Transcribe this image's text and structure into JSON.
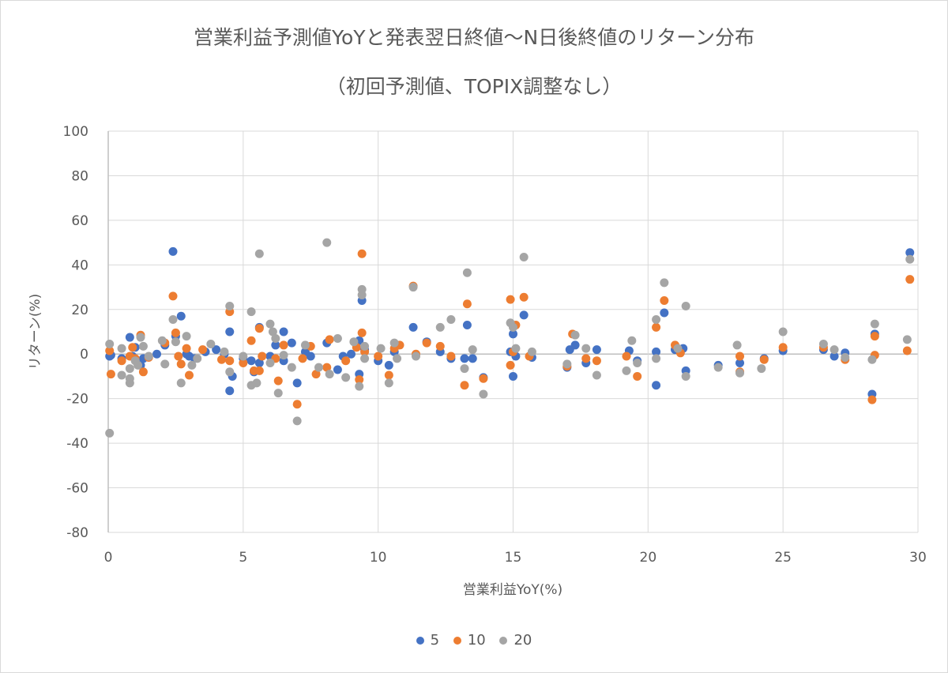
{
  "chart_data": {
    "type": "scatter",
    "title": "営業利益予測値YoYと発表翌日終値～N日後終値のリターン分布",
    "subtitle": "（初回予測値、TOPIX調整なし）",
    "xlabel": "営業利益YoY(%)",
    "ylabel": "リターン(%)",
    "xlim": [
      0,
      30
    ],
    "ylim": [
      -80,
      100
    ],
    "xticks": [
      "0",
      "5",
      "10",
      "15",
      "20",
      "25",
      "30"
    ],
    "yticks": [
      "100",
      "80",
      "60",
      "40",
      "20",
      "0",
      "-20",
      "-40",
      "-60",
      "-80"
    ],
    "grid": true,
    "legend_position": "bottom",
    "series": [
      {
        "name": "5",
        "color": "#4472C4",
        "points": [
          [
            0.05,
            -1
          ],
          [
            0.1,
            -0.5
          ],
          [
            0.5,
            -2
          ],
          [
            0.8,
            7.5
          ],
          [
            0.9,
            -1
          ],
          [
            1.0,
            3
          ],
          [
            1.2,
            -5
          ],
          [
            1.3,
            -2
          ],
          [
            1.8,
            0
          ],
          [
            2.1,
            4
          ],
          [
            2.4,
            46
          ],
          [
            2.5,
            8
          ],
          [
            2.7,
            17
          ],
          [
            2.9,
            0
          ],
          [
            3.0,
            -1
          ],
          [
            3.2,
            -2
          ],
          [
            3.6,
            1
          ],
          [
            4.0,
            2
          ],
          [
            4.3,
            0
          ],
          [
            4.5,
            10
          ],
          [
            4.5,
            -16.5
          ],
          [
            4.6,
            -10
          ],
          [
            5.0,
            -2
          ],
          [
            5.3,
            -3
          ],
          [
            5.4,
            -8
          ],
          [
            5.6,
            12
          ],
          [
            5.6,
            -4
          ],
          [
            6.0,
            -1
          ],
          [
            6.2,
            4
          ],
          [
            6.5,
            10
          ],
          [
            6.5,
            -3
          ],
          [
            6.8,
            5
          ],
          [
            7.0,
            -13
          ],
          [
            7.3,
            1
          ],
          [
            7.5,
            -1
          ],
          [
            8.1,
            5
          ],
          [
            8.5,
            -7
          ],
          [
            8.7,
            -1
          ],
          [
            9.0,
            0
          ],
          [
            9.3,
            6
          ],
          [
            9.3,
            -9
          ],
          [
            9.4,
            24
          ],
          [
            9.5,
            2
          ],
          [
            10.0,
            -3
          ],
          [
            10.4,
            -5
          ],
          [
            10.6,
            1
          ],
          [
            11.3,
            12
          ],
          [
            11.8,
            5.5
          ],
          [
            12.3,
            1
          ],
          [
            12.7,
            -2
          ],
          [
            13.2,
            -2
          ],
          [
            13.3,
            13
          ],
          [
            13.5,
            -2
          ],
          [
            13.9,
            -10.5
          ],
          [
            14.9,
            1
          ],
          [
            15.0,
            9
          ],
          [
            15.0,
            -10
          ],
          [
            15.1,
            -1
          ],
          [
            15.4,
            17.5
          ],
          [
            15.7,
            -1.5
          ],
          [
            17.0,
            -6
          ],
          [
            17.1,
            2
          ],
          [
            17.3,
            4
          ],
          [
            17.7,
            -4
          ],
          [
            18.1,
            2
          ],
          [
            19.3,
            1.5
          ],
          [
            19.6,
            -3
          ],
          [
            20.3,
            1
          ],
          [
            20.3,
            -14
          ],
          [
            20.6,
            18.5
          ],
          [
            21.0,
            2
          ],
          [
            21.3,
            2.5
          ],
          [
            21.4,
            -7.5
          ],
          [
            22.6,
            -5
          ],
          [
            23.4,
            -4
          ],
          [
            24.3,
            -2
          ],
          [
            25.0,
            1.5
          ],
          [
            26.5,
            2
          ],
          [
            26.9,
            -1
          ],
          [
            27.3,
            0.5
          ],
          [
            28.3,
            -18
          ],
          [
            28.4,
            9
          ],
          [
            29.7,
            45.5
          ]
        ]
      },
      {
        "name": "10",
        "color": "#ED7D31",
        "points": [
          [
            0.05,
            1.5
          ],
          [
            0.1,
            -9
          ],
          [
            0.5,
            -3
          ],
          [
            0.8,
            -1
          ],
          [
            0.9,
            3
          ],
          [
            1.0,
            -2
          ],
          [
            1.2,
            8.5
          ],
          [
            1.3,
            -8
          ],
          [
            1.5,
            -1.5
          ],
          [
            2.1,
            5
          ],
          [
            2.4,
            26
          ],
          [
            2.5,
            9.5
          ],
          [
            2.6,
            -1
          ],
          [
            2.7,
            -4.5
          ],
          [
            2.9,
            2.5
          ],
          [
            3.0,
            -9.5
          ],
          [
            3.5,
            2
          ],
          [
            4.2,
            -2.5
          ],
          [
            4.5,
            19
          ],
          [
            4.5,
            -3
          ],
          [
            5.0,
            -4
          ],
          [
            5.3,
            6
          ],
          [
            5.4,
            -7.5
          ],
          [
            5.6,
            11.5
          ],
          [
            5.6,
            -7.5
          ],
          [
            5.7,
            -1
          ],
          [
            6.2,
            -2
          ],
          [
            6.3,
            -12
          ],
          [
            6.5,
            4
          ],
          [
            7.0,
            -22.5
          ],
          [
            7.2,
            -2
          ],
          [
            7.5,
            3.5
          ],
          [
            7.7,
            -9
          ],
          [
            8.1,
            -6
          ],
          [
            8.2,
            6.5
          ],
          [
            8.8,
            -3
          ],
          [
            9.2,
            3
          ],
          [
            9.3,
            -11.5
          ],
          [
            9.4,
            9.5
          ],
          [
            9.4,
            45
          ],
          [
            9.5,
            1
          ],
          [
            10.0,
            -1
          ],
          [
            10.4,
            -9.5
          ],
          [
            10.6,
            2.5
          ],
          [
            10.8,
            4
          ],
          [
            11.3,
            30.5
          ],
          [
            11.4,
            0
          ],
          [
            11.8,
            5
          ],
          [
            12.3,
            3.5
          ],
          [
            12.7,
            -1
          ],
          [
            13.2,
            -14
          ],
          [
            13.3,
            22.5
          ],
          [
            13.9,
            -11
          ],
          [
            14.9,
            24.5
          ],
          [
            14.9,
            -5
          ],
          [
            15.0,
            1
          ],
          [
            15.1,
            13
          ],
          [
            15.4,
            25.5
          ],
          [
            15.6,
            -1
          ],
          [
            17.0,
            -5.5
          ],
          [
            17.2,
            9
          ],
          [
            17.7,
            -2
          ],
          [
            18.1,
            -3
          ],
          [
            19.2,
            -1
          ],
          [
            19.6,
            -10
          ],
          [
            20.3,
            12
          ],
          [
            20.6,
            24
          ],
          [
            21.0,
            4
          ],
          [
            21.2,
            0.5
          ],
          [
            23.4,
            -8
          ],
          [
            23.4,
            -1
          ],
          [
            24.3,
            -2.5
          ],
          [
            25.0,
            3
          ],
          [
            26.5,
            3
          ],
          [
            27.3,
            -2.5
          ],
          [
            28.3,
            -20.5
          ],
          [
            28.4,
            8
          ],
          [
            28.4,
            -0.5
          ],
          [
            29.7,
            33.5
          ],
          [
            29.6,
            1.5
          ]
        ]
      },
      {
        "name": "20",
        "color": "#A5A5A5",
        "points": [
          [
            0.05,
            4.5
          ],
          [
            0.05,
            -35.5
          ],
          [
            0.5,
            2.5
          ],
          [
            0.5,
            -9.5
          ],
          [
            0.8,
            -6.5
          ],
          [
            0.8,
            -11
          ],
          [
            0.8,
            -13
          ],
          [
            1.0,
            -3
          ],
          [
            1.1,
            -5
          ],
          [
            1.2,
            7.5
          ],
          [
            1.3,
            3.5
          ],
          [
            1.5,
            -1
          ],
          [
            2.0,
            6
          ],
          [
            2.1,
            -4.5
          ],
          [
            2.4,
            15.5
          ],
          [
            2.5,
            5.5
          ],
          [
            2.7,
            -13
          ],
          [
            2.9,
            8
          ],
          [
            3.1,
            -5
          ],
          [
            3.3,
            -2
          ],
          [
            3.8,
            4.5
          ],
          [
            4.3,
            1
          ],
          [
            4.5,
            21.5
          ],
          [
            4.5,
            -8
          ],
          [
            5.0,
            -1
          ],
          [
            5.3,
            19
          ],
          [
            5.3,
            -14
          ],
          [
            5.5,
            -13
          ],
          [
            5.6,
            45
          ],
          [
            6.0,
            13.5
          ],
          [
            6.1,
            10
          ],
          [
            6.2,
            7
          ],
          [
            6.0,
            -4
          ],
          [
            6.3,
            -17.5
          ],
          [
            6.5,
            -0.5
          ],
          [
            6.8,
            -6
          ],
          [
            7.0,
            -30
          ],
          [
            7.3,
            4
          ],
          [
            7.8,
            -6
          ],
          [
            8.1,
            50
          ],
          [
            8.2,
            -9
          ],
          [
            8.5,
            7
          ],
          [
            8.8,
            -10.5
          ],
          [
            9.1,
            5.5
          ],
          [
            9.3,
            -14.5
          ],
          [
            9.4,
            29
          ],
          [
            9.4,
            26.5
          ],
          [
            9.5,
            3.5
          ],
          [
            9.5,
            -2
          ],
          [
            10.1,
            2.5
          ],
          [
            10.4,
            -13
          ],
          [
            10.6,
            5
          ],
          [
            10.7,
            -2
          ],
          [
            11.3,
            30
          ],
          [
            11.4,
            -1
          ],
          [
            12.3,
            12
          ],
          [
            12.7,
            15.5
          ],
          [
            13.2,
            -6.5
          ],
          [
            13.3,
            36.5
          ],
          [
            13.5,
            2
          ],
          [
            13.9,
            -18
          ],
          [
            14.9,
            14
          ],
          [
            15.0,
            12
          ],
          [
            15.1,
            2.5
          ],
          [
            15.4,
            43.5
          ],
          [
            15.7,
            1
          ],
          [
            17.0,
            -4.5
          ],
          [
            17.3,
            8.5
          ],
          [
            17.7,
            2.5
          ],
          [
            18.1,
            -9.5
          ],
          [
            19.2,
            -7.5
          ],
          [
            19.4,
            6
          ],
          [
            19.6,
            -4
          ],
          [
            20.3,
            15.5
          ],
          [
            20.3,
            -2
          ],
          [
            20.6,
            32
          ],
          [
            21.1,
            2.5
          ],
          [
            21.4,
            21.5
          ],
          [
            21.4,
            -10
          ],
          [
            22.6,
            -6
          ],
          [
            23.3,
            4
          ],
          [
            23.4,
            -8.5
          ],
          [
            24.2,
            -6.5
          ],
          [
            25.0,
            10
          ],
          [
            26.5,
            4.5
          ],
          [
            26.9,
            2
          ],
          [
            27.3,
            -1.5
          ],
          [
            28.3,
            -2.5
          ],
          [
            28.4,
            13.5
          ],
          [
            29.7,
            42.5
          ],
          [
            29.6,
            6.5
          ]
        ]
      }
    ]
  }
}
